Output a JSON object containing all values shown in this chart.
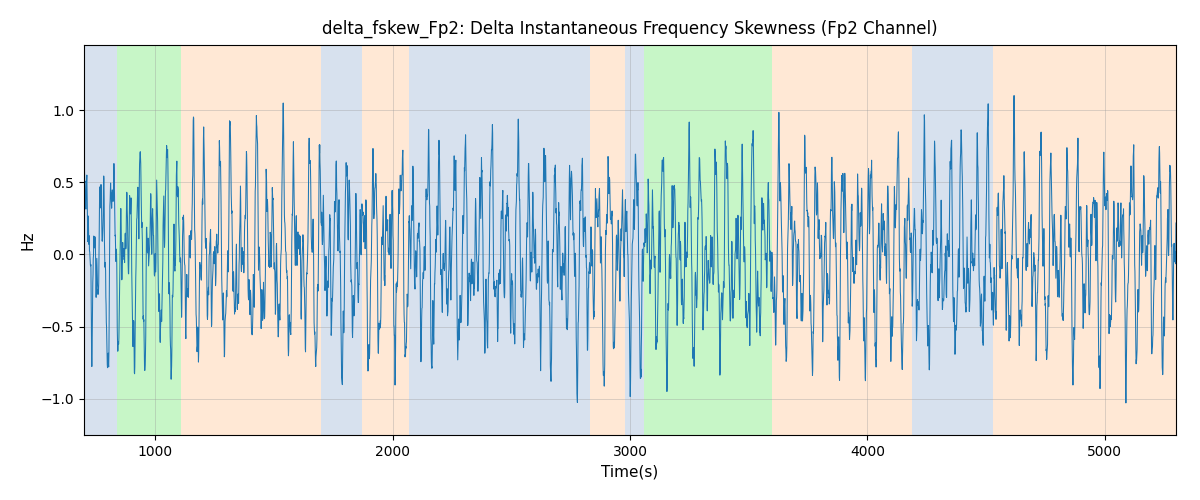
{
  "title": "delta_fskew_Fp2: Delta Instantaneous Frequency Skewness (Fp2 Channel)",
  "xlabel": "Time(s)",
  "ylabel": "Hz",
  "xlim": [
    700,
    5300
  ],
  "ylim": [
    -1.25,
    1.45
  ],
  "yticks": [
    -1.0,
    -0.5,
    0.0,
    0.5,
    1.0
  ],
  "xticks": [
    1000,
    2000,
    3000,
    4000,
    5000
  ],
  "bg_bands": [
    {
      "xstart": 700,
      "xend": 840,
      "color": "#B0C4DE",
      "alpha": 0.5
    },
    {
      "xstart": 840,
      "xend": 1110,
      "color": "#90EE90",
      "alpha": 0.5
    },
    {
      "xstart": 1110,
      "xend": 1700,
      "color": "#FFDAB9",
      "alpha": 0.6
    },
    {
      "xstart": 1700,
      "xend": 1870,
      "color": "#B0C4DE",
      "alpha": 0.5
    },
    {
      "xstart": 1870,
      "xend": 2070,
      "color": "#FFDAB9",
      "alpha": 0.6
    },
    {
      "xstart": 2070,
      "xend": 2830,
      "color": "#B0C4DE",
      "alpha": 0.5
    },
    {
      "xstart": 2830,
      "xend": 2980,
      "color": "#FFDAB9",
      "alpha": 0.6
    },
    {
      "xstart": 2980,
      "xend": 3060,
      "color": "#B0C4DE",
      "alpha": 0.5
    },
    {
      "xstart": 3060,
      "xend": 3600,
      "color": "#90EE90",
      "alpha": 0.5
    },
    {
      "xstart": 3600,
      "xend": 4190,
      "color": "#FFDAB9",
      "alpha": 0.6
    },
    {
      "xstart": 4190,
      "xend": 4530,
      "color": "#B0C4DE",
      "alpha": 0.5
    },
    {
      "xstart": 4530,
      "xend": 5300,
      "color": "#FFDAB9",
      "alpha": 0.6
    }
  ],
  "line_color": "#1f77b4",
  "line_width": 0.75,
  "grid_color": "#999999",
  "grid_alpha": 0.5,
  "grid_linewidth": 0.5,
  "title_fontsize": 12,
  "label_fontsize": 11,
  "tick_fontsize": 10,
  "seed": 12345,
  "n_points": 4600
}
